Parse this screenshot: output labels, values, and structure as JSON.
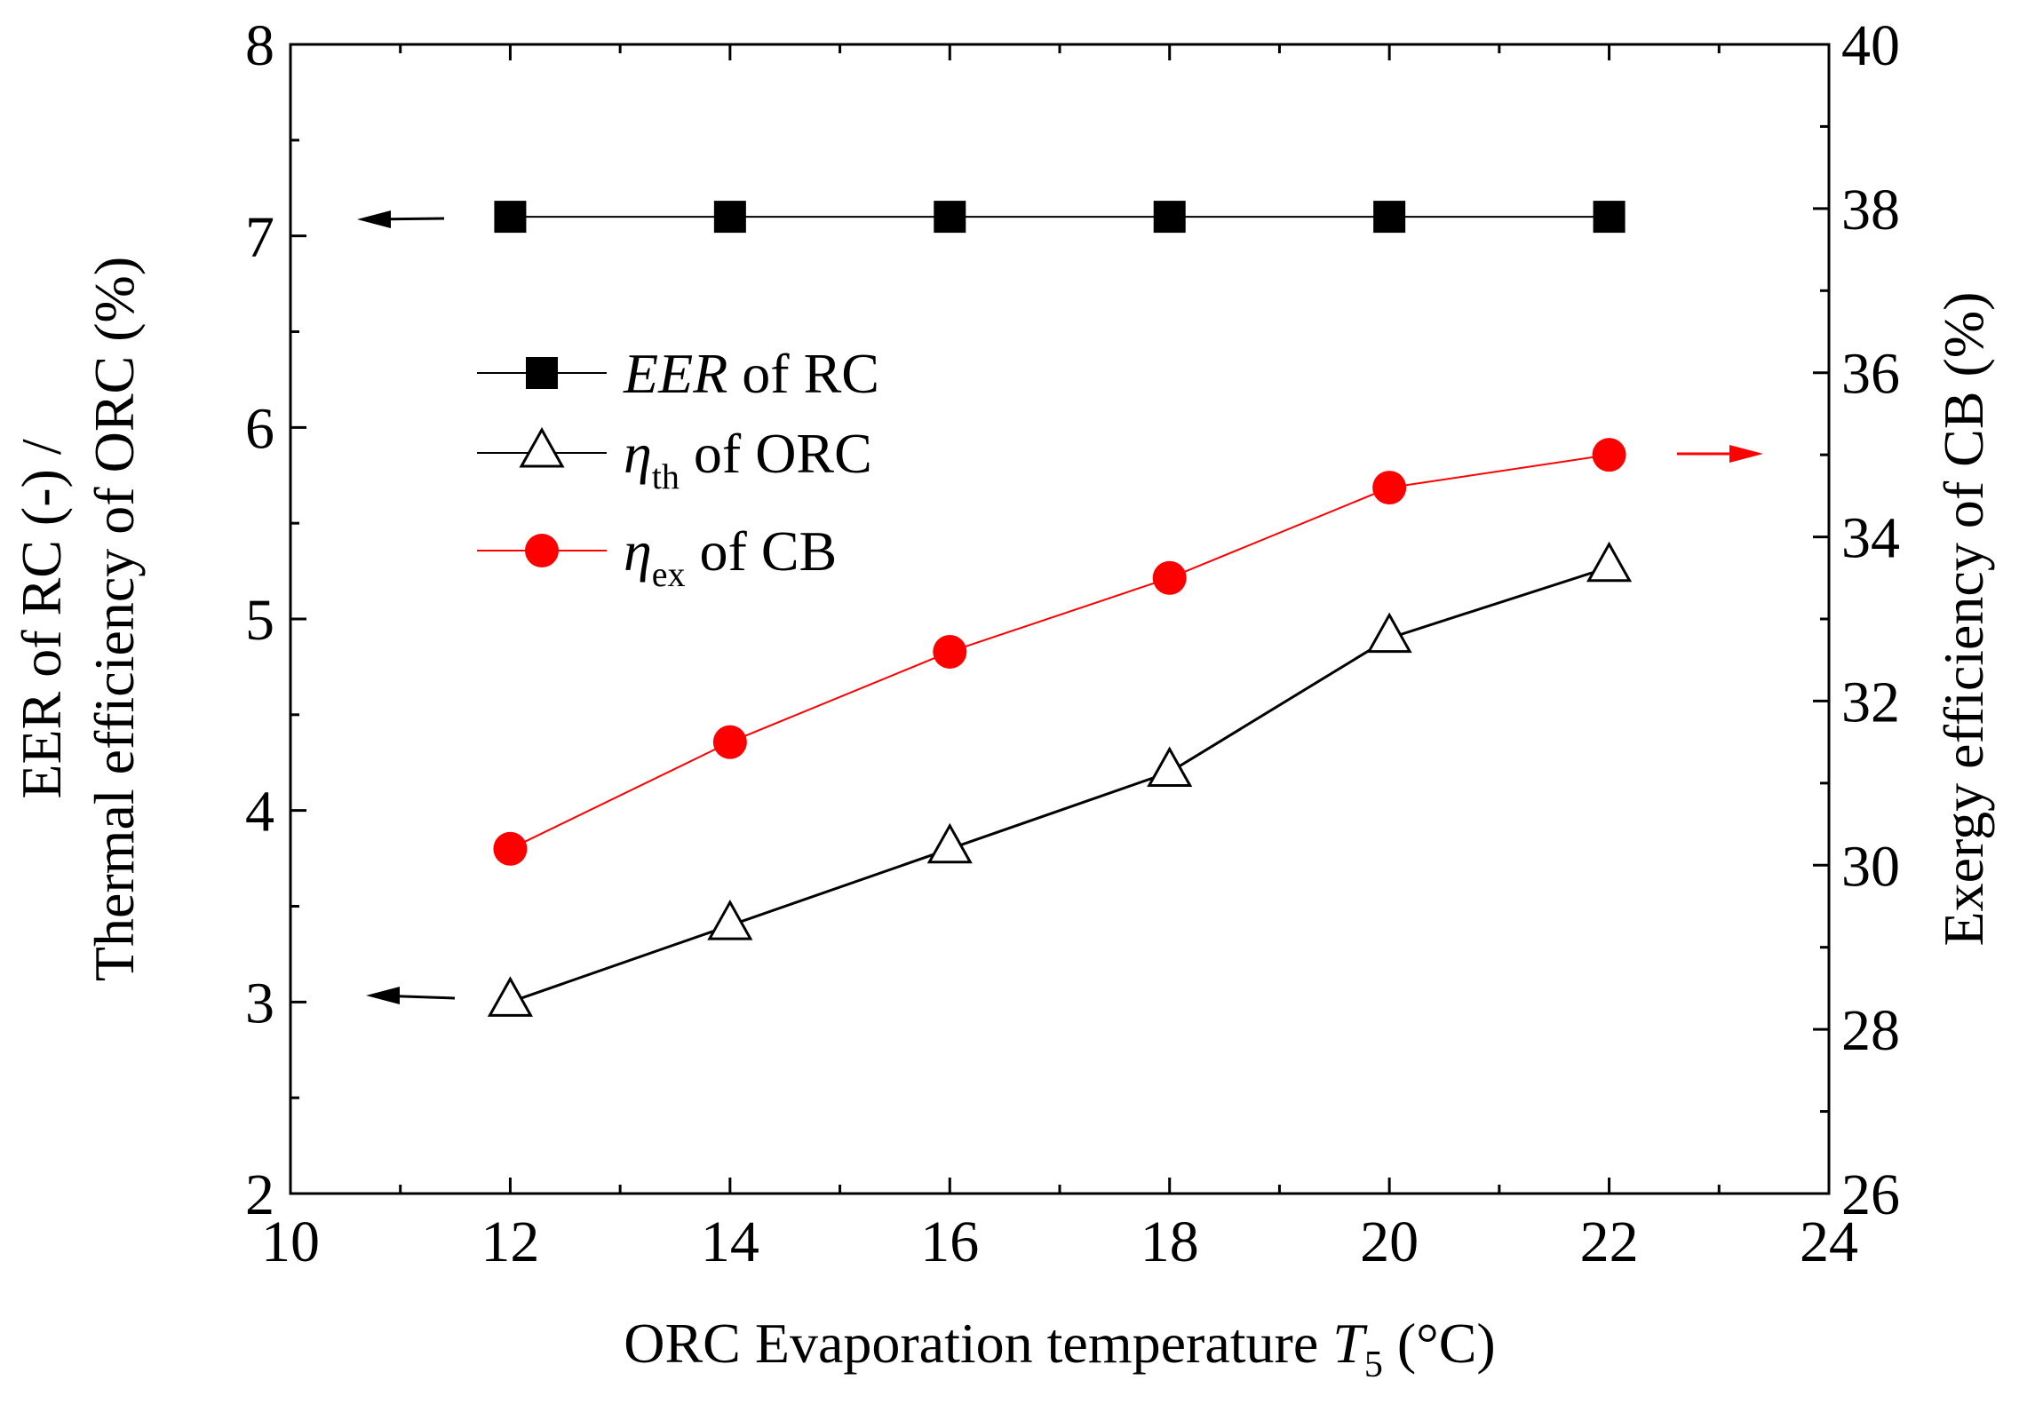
{
  "chart_data": {
    "type": "line",
    "x": [
      12,
      14,
      16,
      18,
      20,
      22
    ],
    "xlim": [
      10,
      24
    ],
    "x_ticks": [
      10,
      12,
      14,
      16,
      18,
      20,
      22,
      24
    ],
    "ylim_left": [
      2,
      8
    ],
    "y_left_ticks": [
      2,
      3,
      4,
      5,
      6,
      7,
      8
    ],
    "ylim_right": [
      26,
      40
    ],
    "y_right_ticks": [
      26,
      28,
      30,
      32,
      34,
      36,
      38,
      40
    ],
    "xlabel": {
      "main": "ORC Evaporation temperature ",
      "var": "T",
      "sub": "5",
      "unit": " (°C)"
    },
    "ylabel_left": [
      "EER of RC (-) /",
      "Thermal efficiency of ORC (%)"
    ],
    "ylabel_right": "Exergy efficiency of CB (%)",
    "series": [
      {
        "key": "eer",
        "name_parts": [
          "EER",
          "",
          " of RC"
        ],
        "axis": "left",
        "marker": "filled-square",
        "color": "#000000",
        "values": [
          7.1,
          7.1,
          7.1,
          7.1,
          7.1,
          7.1
        ]
      },
      {
        "key": "eta_th",
        "name_parts": [
          "η",
          "th",
          " of ORC"
        ],
        "axis": "left",
        "marker": "open-triangle",
        "color": "#000000",
        "values": [
          3.0,
          3.4,
          3.8,
          4.2,
          4.9,
          5.27
        ]
      },
      {
        "key": "eta_ex",
        "name_parts": [
          "η",
          "ex",
          " of CB"
        ],
        "axis": "right",
        "marker": "filled-circle",
        "color": "#ff0000",
        "values": [
          30.2,
          31.5,
          32.6,
          33.5,
          34.6,
          35.0
        ]
      }
    ],
    "legend_position": "center-left",
    "grid": false
  }
}
